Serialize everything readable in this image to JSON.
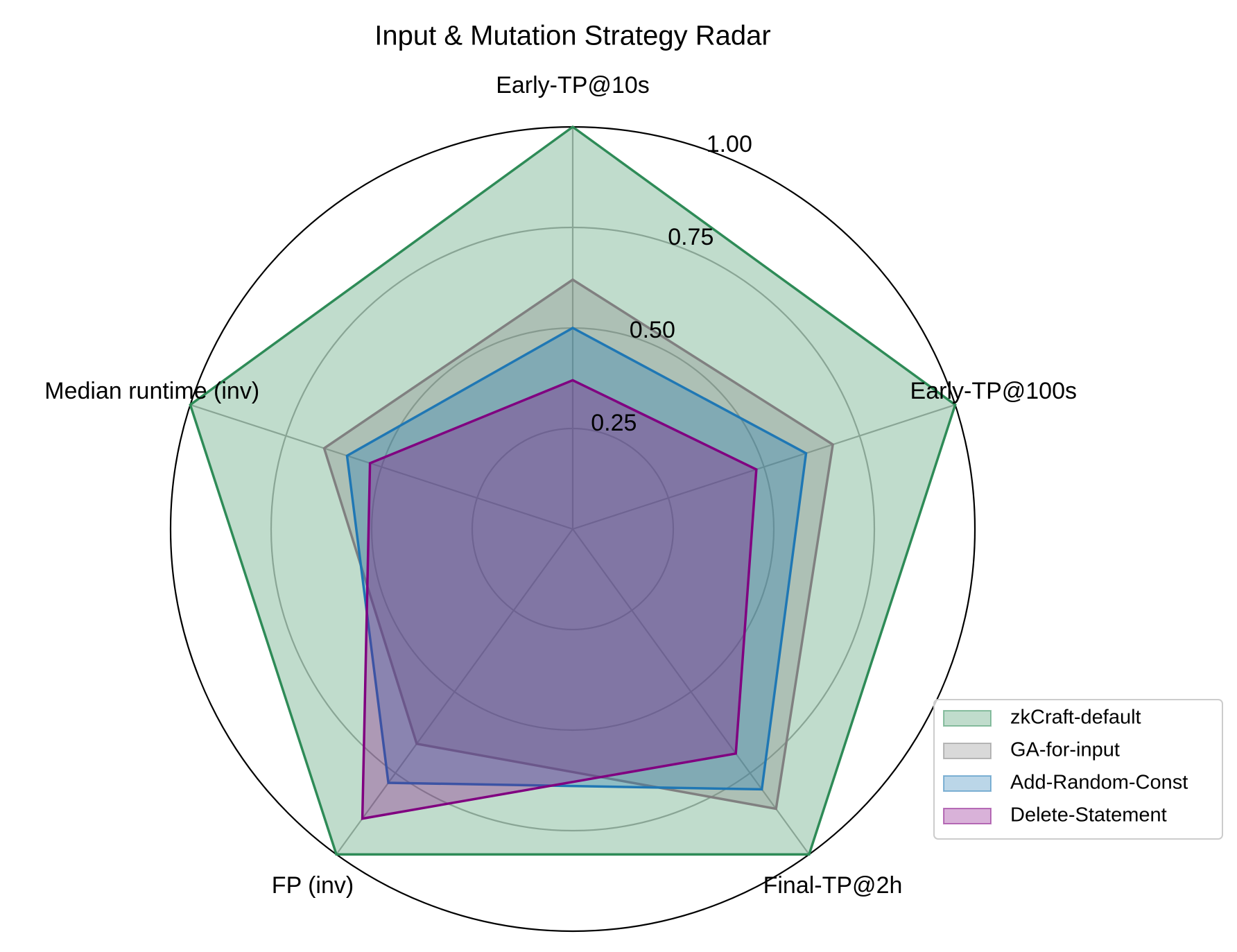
{
  "chart_data": {
    "type": "radar",
    "title": "Input & Mutation Strategy Radar",
    "categories": [
      "Early-TP@10s",
      "Early-TP@100s",
      "Final-TP@2h",
      "FP (inv)",
      "Median runtime (inv)"
    ],
    "series": [
      {
        "name": "zkCraft-default",
        "color": "#2e8b57",
        "values": [
          1.0,
          1.0,
          1.0,
          1.0,
          1.0
        ]
      },
      {
        "name": "GA-for-input",
        "color": "#808080",
        "values": [
          0.62,
          0.68,
          0.86,
          0.66,
          0.65
        ]
      },
      {
        "name": "Add-Random-Const",
        "color": "#1f77b4",
        "values": [
          0.5,
          0.61,
          0.8,
          0.78,
          0.59
        ]
      },
      {
        "name": "Delete-Statement",
        "color": "#800080",
        "values": [
          0.37,
          0.48,
          0.69,
          0.89,
          0.53
        ]
      }
    ],
    "ylim": [
      0,
      1
    ],
    "yticks": [
      0.25,
      {
        "value": 0.5,
        "label": "0.50"
      },
      0.75,
      {
        "value": 1.0,
        "label": "1.00"
      }
    ],
    "grid": true,
    "legend": "lower right"
  }
}
